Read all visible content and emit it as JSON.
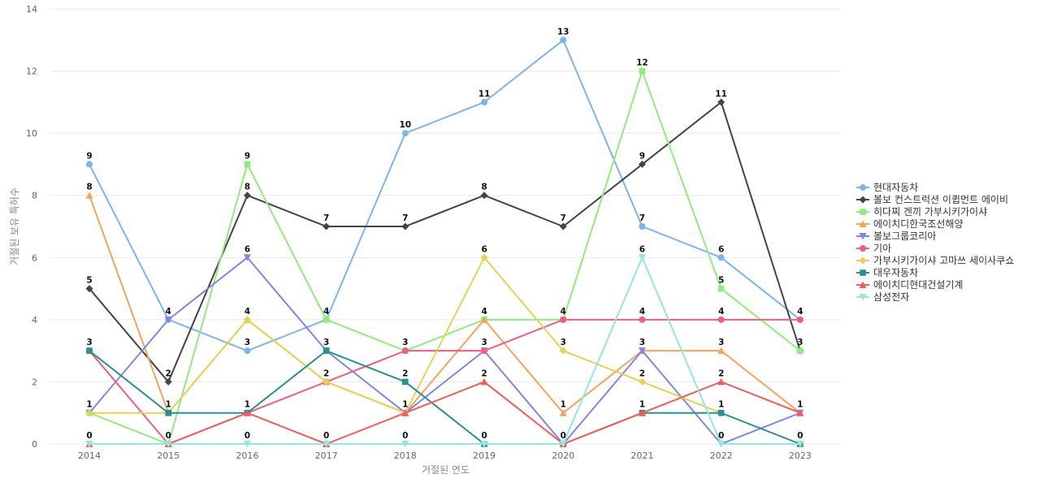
{
  "chart_data": {
    "type": "line",
    "title": "",
    "xlabel": "거절된 연도",
    "ylabel": "거절된 보유 특허수",
    "ylim": [
      0,
      14
    ],
    "yticks": [
      0,
      2,
      4,
      6,
      8,
      10,
      12,
      14
    ],
    "categories": [
      "2014",
      "2015",
      "2016",
      "2017",
      "2018",
      "2019",
      "2020",
      "2021",
      "2022",
      "2023"
    ],
    "grid": "horizontal",
    "legend_position": "right",
    "series": [
      {
        "name": "현대자동차",
        "color": "#7cb5ec",
        "marker": "circle",
        "values": [
          9,
          4,
          3,
          4,
          10,
          11,
          13,
          7,
          6,
          4
        ]
      },
      {
        "name": "볼보 컨스트럭션 이큅먼트 에이비",
        "color": "#434348",
        "marker": "diamond",
        "values": [
          5,
          2,
          8,
          7,
          7,
          8,
          7,
          9,
          11,
          3
        ]
      },
      {
        "name": "히다찌 겐끼 가부시키가이샤",
        "color": "#90ed7d",
        "marker": "square",
        "values": [
          1,
          0,
          9,
          4,
          3,
          4,
          4,
          12,
          5,
          3
        ]
      },
      {
        "name": "에이치디한국조선해양",
        "color": "#f7a35c",
        "marker": "triangle",
        "values": [
          8,
          1,
          4,
          2,
          1,
          4,
          1,
          3,
          3,
          1
        ]
      },
      {
        "name": "볼보그룹코리아",
        "color": "#8085e9",
        "marker": "triangle-down",
        "values": [
          1,
          4,
          6,
          3,
          1,
          3,
          0,
          3,
          0,
          1
        ]
      },
      {
        "name": "기아",
        "color": "#f15c80",
        "marker": "circle",
        "values": [
          3,
          0,
          1,
          2,
          3,
          3,
          4,
          4,
          4,
          4
        ]
      },
      {
        "name": "가부시키가이샤 고마쓰 세이사쿠쇼",
        "color": "#e4d354",
        "marker": "diamond",
        "values": [
          1,
          1,
          4,
          2,
          1,
          6,
          3,
          2,
          1,
          null
        ]
      },
      {
        "name": "대우자동차",
        "color": "#2b908f",
        "marker": "square",
        "values": [
          3,
          1,
          1,
          3,
          2,
          0,
          0,
          1,
          1,
          0
        ]
      },
      {
        "name": "에이치디현대건설기계",
        "color": "#f45b5b",
        "marker": "triangle",
        "values": [
          0,
          0,
          1,
          0,
          1,
          2,
          0,
          1,
          2,
          1
        ]
      },
      {
        "name": "삼성전자",
        "color": "#91e8e1",
        "marker": "triangle-down",
        "values": [
          0,
          0,
          0,
          0,
          0,
          0,
          0,
          6,
          0,
          0
        ]
      }
    ],
    "data_labels": [
      {
        "x": "2014",
        "y": 9,
        "text": "9"
      },
      {
        "x": "2014",
        "y": 8,
        "text": "8"
      },
      {
        "x": "2014",
        "y": 5,
        "text": "5"
      },
      {
        "x": "2014",
        "y": 3,
        "text": "3"
      },
      {
        "x": "2014",
        "y": 1,
        "text": "1"
      },
      {
        "x": "2014",
        "y": 0,
        "text": "0"
      },
      {
        "x": "2015",
        "y": 4,
        "text": "4"
      },
      {
        "x": "2015",
        "y": 2,
        "text": "2"
      },
      {
        "x": "2015",
        "y": 1,
        "text": "1"
      },
      {
        "x": "2015",
        "y": 0,
        "text": "0"
      },
      {
        "x": "2016",
        "y": 9,
        "text": "9"
      },
      {
        "x": "2016",
        "y": 8,
        "text": "8"
      },
      {
        "x": "2016",
        "y": 6,
        "text": "6"
      },
      {
        "x": "2016",
        "y": 4,
        "text": "4"
      },
      {
        "x": "2016",
        "y": 3,
        "text": "3"
      },
      {
        "x": "2016",
        "y": 1,
        "text": "1"
      },
      {
        "x": "2016",
        "y": 0,
        "text": "0"
      },
      {
        "x": "2017",
        "y": 7,
        "text": "7"
      },
      {
        "x": "2017",
        "y": 4,
        "text": "4"
      },
      {
        "x": "2017",
        "y": 3,
        "text": "3"
      },
      {
        "x": "2017",
        "y": 2,
        "text": "2"
      },
      {
        "x": "2017",
        "y": 0,
        "text": "0"
      },
      {
        "x": "2018",
        "y": 10,
        "text": "10"
      },
      {
        "x": "2018",
        "y": 7,
        "text": "7"
      },
      {
        "x": "2018",
        "y": 3,
        "text": "3"
      },
      {
        "x": "2018",
        "y": 2,
        "text": "2"
      },
      {
        "x": "2018",
        "y": 1,
        "text": "1"
      },
      {
        "x": "2018",
        "y": 0,
        "text": "0"
      },
      {
        "x": "2019",
        "y": 11,
        "text": "11"
      },
      {
        "x": "2019",
        "y": 8,
        "text": "8"
      },
      {
        "x": "2019",
        "y": 6,
        "text": "6"
      },
      {
        "x": "2019",
        "y": 4,
        "text": "4"
      },
      {
        "x": "2019",
        "y": 3,
        "text": "3"
      },
      {
        "x": "2019",
        "y": 2,
        "text": "2"
      },
      {
        "x": "2019",
        "y": 0,
        "text": "0"
      },
      {
        "x": "2020",
        "y": 13,
        "text": "13"
      },
      {
        "x": "2020",
        "y": 7,
        "text": "7"
      },
      {
        "x": "2020",
        "y": 4,
        "text": "4"
      },
      {
        "x": "2020",
        "y": 3,
        "text": "3"
      },
      {
        "x": "2020",
        "y": 1,
        "text": "1"
      },
      {
        "x": "2020",
        "y": 0,
        "text": "0"
      },
      {
        "x": "2021",
        "y": 12,
        "text": "12"
      },
      {
        "x": "2021",
        "y": 9,
        "text": "9"
      },
      {
        "x": "2021",
        "y": 7,
        "text": "7"
      },
      {
        "x": "2021",
        "y": 6,
        "text": "6"
      },
      {
        "x": "2021",
        "y": 4,
        "text": "4"
      },
      {
        "x": "2021",
        "y": 3,
        "text": "3"
      },
      {
        "x": "2021",
        "y": 2,
        "text": "2"
      },
      {
        "x": "2021",
        "y": 1,
        "text": "1"
      },
      {
        "x": "2022",
        "y": 11,
        "text": "11"
      },
      {
        "x": "2022",
        "y": 6,
        "text": "6"
      },
      {
        "x": "2022",
        "y": 5,
        "text": "5"
      },
      {
        "x": "2022",
        "y": 4,
        "text": "4"
      },
      {
        "x": "2022",
        "y": 3,
        "text": "3"
      },
      {
        "x": "2022",
        "y": 2,
        "text": "2"
      },
      {
        "x": "2022",
        "y": 1,
        "text": "1"
      },
      {
        "x": "2022",
        "y": 0,
        "text": "0"
      },
      {
        "x": "2023",
        "y": 4,
        "text": "4"
      },
      {
        "x": "2023",
        "y": 3,
        "text": "3"
      },
      {
        "x": "2023",
        "y": 1,
        "text": "1"
      },
      {
        "x": "2023",
        "y": 0,
        "text": "0"
      }
    ]
  }
}
